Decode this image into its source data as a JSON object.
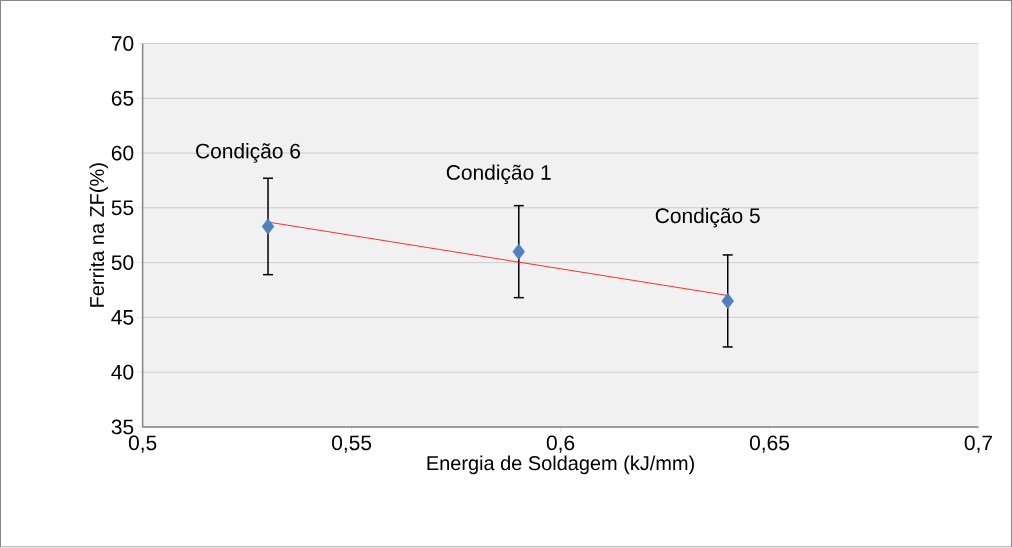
{
  "chart_data": {
    "type": "scatter",
    "xlabel": "Energia de Soldagem (kJ/mm)",
    "ylabel": "Ferrita na ZF(%)",
    "x": [
      0.53,
      0.59,
      0.64
    ],
    "series": [
      {
        "color": "#4f81bd",
        "values": [
          53.3,
          51.0,
          46.5
        ],
        "errors": [
          4.4,
          4.2,
          4.2
        ]
      },
      {
        "type": "line",
        "color": "#ff0000",
        "x": [
          0.53,
          0.64
        ],
        "values": [
          53.7,
          47.0
        ],
        "marker": "none"
      }
    ],
    "annotations": [
      "Condição 6",
      "Condição 1",
      "Condição 5"
    ],
    "xlim": [
      0.5,
      0.7
    ],
    "ylim": [
      35,
      70
    ],
    "xticks": [
      {
        "value": 0.5,
        "label": "0,5"
      },
      {
        "value": 0.55,
        "label": "0,55"
      },
      {
        "value": 0.6,
        "label": "0,6"
      },
      {
        "value": 0.65,
        "label": "0,65"
      },
      {
        "value": 0.7,
        "label": "0,7"
      }
    ],
    "yticks": [
      35,
      40,
      45,
      50,
      55,
      60,
      65,
      70
    ],
    "grid": "y",
    "marker": "diamond",
    "line_style": "solid"
  }
}
